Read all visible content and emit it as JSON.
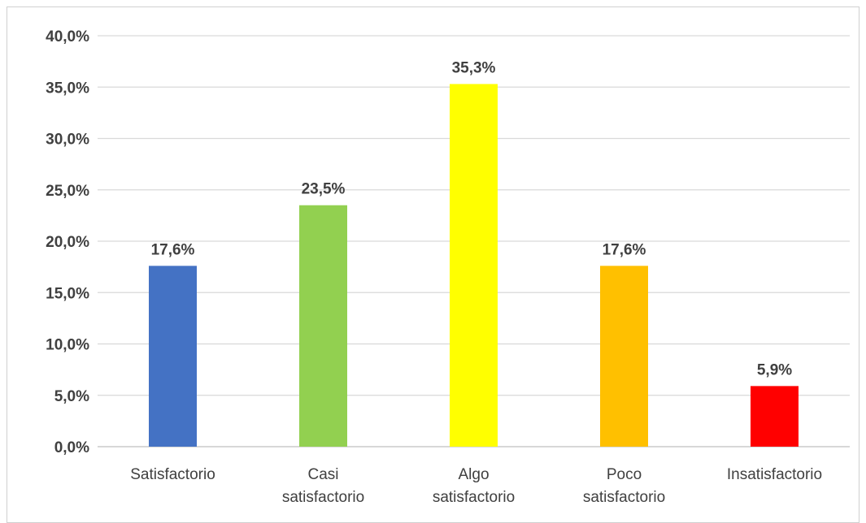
{
  "chart_data": {
    "type": "bar",
    "title": "",
    "xlabel": "",
    "ylabel": "",
    "categories": [
      [
        "Satisfactorio"
      ],
      [
        "Casi",
        "satisfactorio"
      ],
      [
        "Algo",
        "satisfactorio"
      ],
      [
        "Poco",
        "satisfactorio"
      ],
      [
        "Insatisfactorio"
      ]
    ],
    "values": [
      17.6,
      23.5,
      35.3,
      17.6,
      5.9
    ],
    "data_labels": [
      "17,6%",
      "23,5%",
      "35,3%",
      "17,6%",
      "5,9%"
    ],
    "colors": [
      "#4472C4",
      "#92D050",
      "#FFFF00",
      "#FFC000",
      "#FF0000"
    ],
    "ylim": [
      0,
      40
    ],
    "yticks": [
      0,
      5,
      10,
      15,
      20,
      25,
      30,
      35,
      40
    ],
    "ytick_labels": [
      "0,0%",
      "5,0%",
      "10,0%",
      "15,0%",
      "20,0%",
      "25,0%",
      "30,0%",
      "35,0%",
      "40,0%"
    ],
    "grid": true,
    "gridline_color": "#D9D9D9"
  }
}
